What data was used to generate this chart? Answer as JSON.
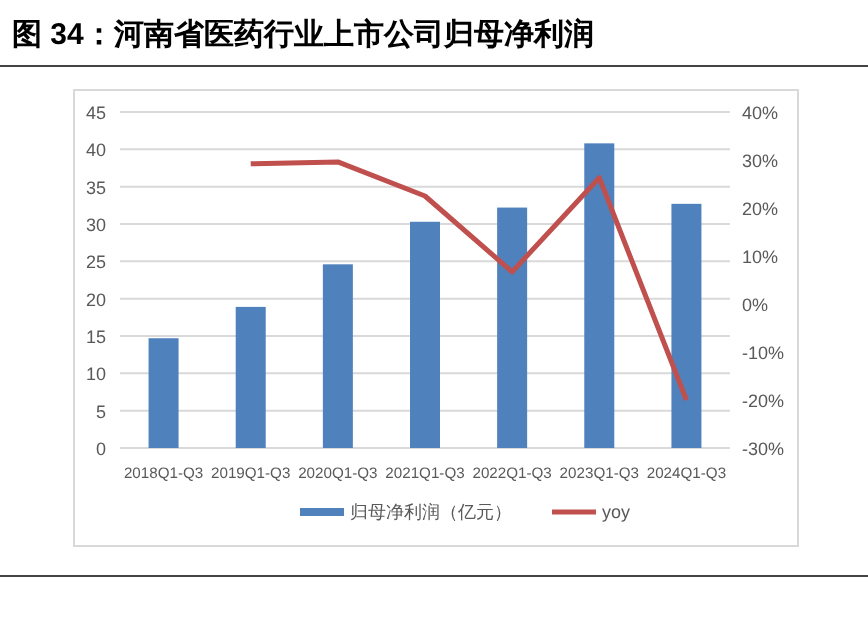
{
  "chart_data": {
    "type": "bar",
    "title": "图 34：河南省医药行业上市公司归母净利润",
    "categories": [
      "2018Q1-Q3",
      "2019Q1-Q3",
      "2020Q1-Q3",
      "2021Q1-Q3",
      "2022Q1-Q3",
      "2023Q1-Q3",
      "2024Q1-Q3"
    ],
    "series": [
      {
        "name": "归母净利润（亿元）",
        "color": "#4f81bd",
        "values": [
          14.7,
          18.9,
          24.6,
          30.3,
          32.2,
          40.8,
          32.7
        ]
      },
      {
        "name": "yoy",
        "type": "line",
        "axis": "y2",
        "color": "#c0504d",
        "values": [
          null,
          29.2,
          29.6,
          22.5,
          6.7,
          26.3,
          -20
        ]
      }
    ],
    "ylim": [
      0,
      45
    ],
    "yticks": [
      0,
      5,
      10,
      15,
      20,
      25,
      30,
      35,
      40,
      45
    ],
    "y2lim": [
      -30,
      40
    ],
    "y2ticks": [
      {
        "value": -30,
        "label": "-30%"
      },
      {
        "value": -20,
        "label": "-20%"
      },
      {
        "value": -10,
        "label": "-10%"
      },
      {
        "value": 0,
        "label": "0%"
      },
      {
        "value": 10,
        "label": "10%"
      },
      {
        "value": 20,
        "label": "20%"
      },
      {
        "value": 30,
        "label": "30%"
      },
      {
        "value": 40,
        "label": "40%"
      }
    ],
    "grid": "y",
    "legend": "bottom"
  }
}
